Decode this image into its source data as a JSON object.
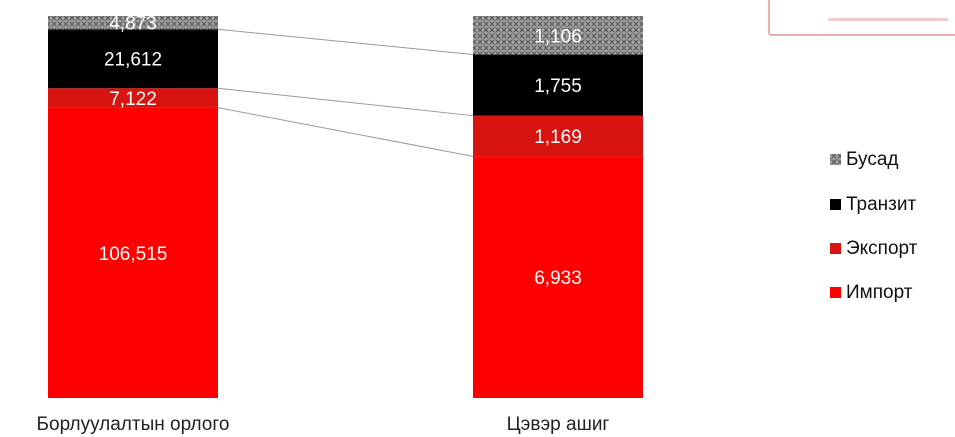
{
  "chart_data": {
    "type": "bar",
    "stacked": true,
    "categories": [
      "Борлуулалтын орлого",
      "Цэвэр ашиг"
    ],
    "series": [
      {
        "name": "Импорт",
        "values": [
          106515,
          6933
        ],
        "color": "#ff0000",
        "labels": [
          "106,515",
          "6,933"
        ]
      },
      {
        "name": "Экспорт",
        "values": [
          7122,
          1169
        ],
        "color": "#d7140f",
        "labels": [
          "7,122",
          "1,169"
        ]
      },
      {
        "name": "Транзит",
        "values": [
          21612,
          1755
        ],
        "color": "#000000",
        "labels": [
          "21,612",
          "1,755"
        ]
      },
      {
        "name": "Бусад",
        "values": [
          4873,
          1106
        ],
        "color": "#8c8c8c",
        "labels": [
          "4,873",
          "1,106"
        ]
      }
    ],
    "legend_order": [
      "Бусад",
      "Транзит",
      "Экспорт",
      "Импорт"
    ],
    "legend_position": "right",
    "normalized_100_percent": true,
    "connector_lines": true,
    "grid": false,
    "title": "",
    "xlabel": "",
    "ylabel": ""
  },
  "stamp": {
    "icon": "stamp-icon",
    "color": "#e8a0a4"
  }
}
